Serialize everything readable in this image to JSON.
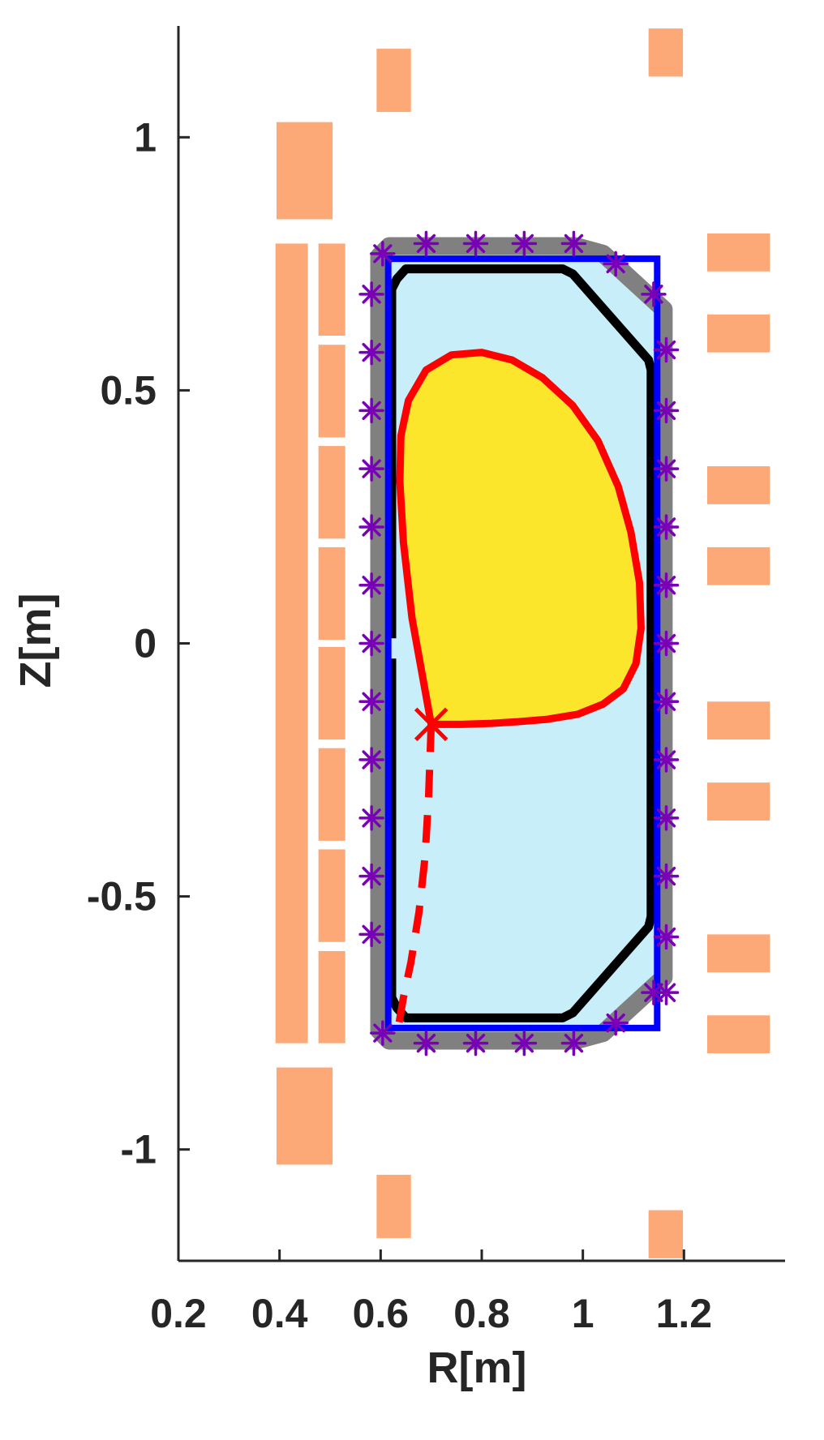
{
  "chart_data": {
    "type": "scatter",
    "title": "",
    "xlabel": "R[m]",
    "ylabel": "Z[m]",
    "xlim": [
      0.2,
      1.4
    ],
    "ylim": [
      -1.22,
      1.22
    ],
    "xticks": [
      0.2,
      0.4,
      0.6,
      0.8,
      1,
      1.2
    ],
    "yticks": [
      -1,
      -0.5,
      0,
      0.5,
      1
    ],
    "grid": false,
    "colors": {
      "coil": "#fda877",
      "vessel_fill": "#c8eef9",
      "vessel_outline": "#808080",
      "limiter": "#000000",
      "box": "#0000ff",
      "plasma_fill": "#fbe62b",
      "separatrix": "#ff0000",
      "probe": "#7a00b8",
      "axis": "#262626"
    },
    "coils": [
      {
        "r": [
          0.392,
          0.456
        ],
        "z": [
          -0.79,
          0.79
        ]
      },
      {
        "r": [
          0.394,
          0.505
        ],
        "z": [
          0.838,
          1.03
        ]
      },
      {
        "r": [
          0.394,
          0.505
        ],
        "z": [
          -1.03,
          -0.838
        ]
      },
      {
        "r": [
          0.477,
          0.53
        ],
        "z": [
          0.608,
          0.79
        ]
      },
      {
        "r": [
          0.477,
          0.53
        ],
        "z": [
          0.407,
          0.59
        ]
      },
      {
        "r": [
          0.477,
          0.53
        ],
        "z": [
          0.207,
          0.39
        ]
      },
      {
        "r": [
          0.477,
          0.53
        ],
        "z": [
          0.007,
          0.19
        ]
      },
      {
        "r": [
          0.477,
          0.53
        ],
        "z": [
          -0.19,
          -0.007
        ]
      },
      {
        "r": [
          0.477,
          0.53
        ],
        "z": [
          -0.39,
          -0.207
        ]
      },
      {
        "r": [
          0.477,
          0.53
        ],
        "z": [
          -0.59,
          -0.407
        ]
      },
      {
        "r": [
          0.477,
          0.53
        ],
        "z": [
          -0.79,
          -0.608
        ]
      },
      {
        "r": [
          0.592,
          0.66
        ],
        "z": [
          1.05,
          1.175
        ]
      },
      {
        "r": [
          0.592,
          0.66
        ],
        "z": [
          -1.175,
          -1.05
        ]
      },
      {
        "r": [
          1.13,
          1.198
        ],
        "z": [
          1.12,
          1.215
        ]
      },
      {
        "r": [
          1.13,
          1.198
        ],
        "z": [
          -1.215,
          -1.12
        ]
      },
      {
        "r": [
          1.246,
          1.37
        ],
        "z": [
          0.735,
          0.81
        ]
      },
      {
        "r": [
          1.246,
          1.37
        ],
        "z": [
          0.575,
          0.65
        ]
      },
      {
        "r": [
          1.246,
          1.37
        ],
        "z": [
          0.275,
          0.35
        ]
      },
      {
        "r": [
          1.246,
          1.37
        ],
        "z": [
          0.115,
          0.19
        ]
      },
      {
        "r": [
          1.246,
          1.37
        ],
        "z": [
          -0.19,
          -0.115
        ]
      },
      {
        "r": [
          1.246,
          1.37
        ],
        "z": [
          -0.35,
          -0.275
        ]
      },
      {
        "r": [
          1.246,
          1.37
        ],
        "z": [
          -0.65,
          -0.575
        ]
      },
      {
        "r": [
          1.246,
          1.37
        ],
        "z": [
          -0.81,
          -0.735
        ]
      }
    ],
    "vessel": {
      "r": [
        0.617,
        0.985,
        1.04,
        1.16,
        1.16,
        1.04,
        0.985,
        0.617,
        0.597,
        0.597
      ],
      "z": [
        0.785,
        0.785,
        0.77,
        0.66,
        -0.66,
        -0.77,
        -0.785,
        -0.785,
        -0.765,
        0.765
      ]
    },
    "limiter": {
      "r": [
        0.622,
        0.622,
        0.632,
        0.632,
        0.65,
        0.96,
        0.98,
        1.13,
        1.135,
        1.135,
        1.13,
        0.98,
        0.96,
        0.65,
        0.632,
        0.622,
        0.622
      ],
      "z": [
        0.01,
        0.7,
        0.72,
        0.72,
        0.74,
        0.74,
        0.73,
        0.56,
        0.54,
        -0.54,
        -0.56,
        -0.73,
        -0.74,
        -0.74,
        -0.72,
        -0.7,
        -0.03
      ]
    },
    "box": {
      "r": [
        0.615,
        1.147
      ],
      "z": [
        -0.76,
        0.76
      ]
    },
    "plasma_boundary": {
      "r": [
        0.7,
        0.662,
        0.645,
        0.638,
        0.64,
        0.655,
        0.69,
        0.74,
        0.8,
        0.86,
        0.92,
        0.98,
        1.03,
        1.07,
        1.095,
        1.112,
        1.115,
        1.105,
        1.08,
        1.04,
        0.99,
        0.93,
        0.87,
        0.82,
        0.76,
        0.7
      ],
      "z": [
        -0.16,
        0.05,
        0.2,
        0.32,
        0.41,
        0.48,
        0.54,
        0.57,
        0.575,
        0.56,
        0.525,
        0.47,
        0.4,
        0.31,
        0.22,
        0.12,
        0.03,
        -0.04,
        -0.09,
        -0.12,
        -0.14,
        -0.15,
        -0.155,
        -0.158,
        -0.16,
        -0.16
      ]
    },
    "x_point": {
      "r": 0.7,
      "z": -0.16
    },
    "divertor_leg": {
      "r": [
        0.7,
        0.695,
        0.688,
        0.676,
        0.66,
        0.645,
        0.633
      ],
      "z": [
        -0.16,
        -0.3,
        -0.42,
        -0.53,
        -0.63,
        -0.7,
        -0.77
      ]
    },
    "flux_loops": {
      "r": [
        0.604,
        0.69,
        0.788,
        0.884,
        0.982,
        1.065,
        1.14,
        1.165,
        1.165,
        1.165,
        1.165,
        1.165,
        1.165,
        1.165,
        1.165,
        1.165,
        1.165,
        1.165,
        1.165,
        1.14,
        1.065,
        0.982,
        0.884,
        0.788,
        0.69,
        0.604,
        0.582,
        0.582,
        0.582,
        0.582,
        0.582,
        0.582,
        0.582,
        0.582,
        0.582,
        0.582,
        0.582,
        0.582
      ],
      "z": [
        0.77,
        0.79,
        0.79,
        0.79,
        0.79,
        0.75,
        0.69,
        0.58,
        0.46,
        0.345,
        0.23,
        0.115,
        0.0,
        -0.115,
        -0.23,
        -0.345,
        -0.46,
        -0.58,
        -0.69,
        -0.69,
        -0.75,
        -0.79,
        -0.79,
        -0.79,
        -0.79,
        -0.77,
        0.69,
        0.575,
        0.46,
        0.345,
        0.23,
        0.115,
        0.0,
        -0.115,
        -0.23,
        -0.345,
        -0.46,
        -0.575
      ]
    }
  }
}
